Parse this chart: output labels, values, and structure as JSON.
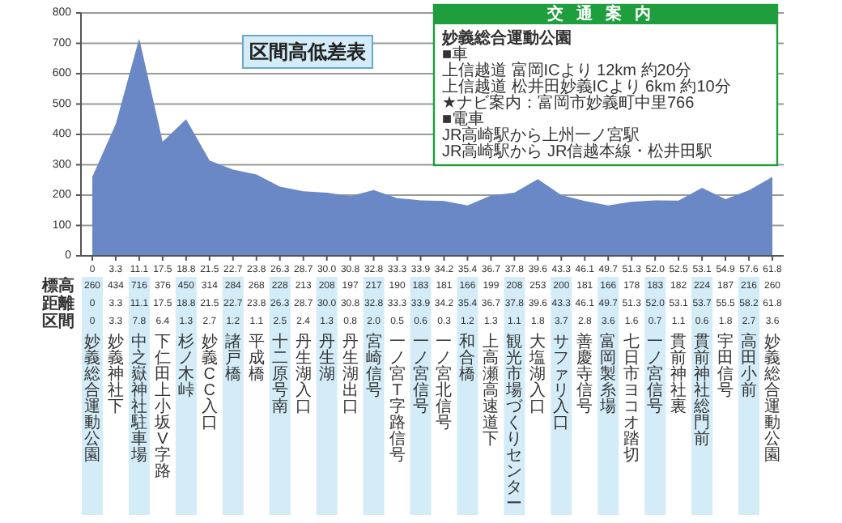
{
  "chart_data": [
    {
      "type": "area",
      "title": "区間高低差表",
      "color": "#6b88c6",
      "ylim": [
        0,
        800
      ],
      "yticks": [
        0,
        100,
        200,
        300,
        400,
        500,
        600,
        700,
        800
      ],
      "grid": "y",
      "data_labels": true,
      "categories": [
        "0",
        "3.3",
        "11.1",
        "17.5",
        "18.8",
        "21.5",
        "22.7",
        "23.8",
        "26.3",
        "28.7",
        "30.0",
        "30.8",
        "32.8",
        "33.3",
        "33.9",
        "34.2",
        "35.4",
        "36.7",
        "37.8",
        "39.6",
        "43.3",
        "46.1",
        "49.7",
        "51.3",
        "52.0",
        "52.5",
        "53.1",
        "54.9",
        "57.6",
        "61.8"
      ],
      "values": [
        260,
        434,
        716,
        376,
        450,
        314,
        284,
        268,
        228,
        213,
        208,
        197,
        217,
        190,
        183,
        181,
        166,
        199,
        208,
        253,
        200,
        181,
        166,
        178,
        183,
        182,
        224,
        187,
        216,
        260
      ],
      "annotations": [
        "標高",
        "距離",
        "区間",
        "0",
        "3.3",
        "11.1",
        "17.5",
        "18.8",
        "21.5",
        "22.7",
        "23.8",
        "26.3",
        "28.7",
        "30.0",
        "30.8",
        "32.8",
        "33.3",
        "33.9",
        "34.2",
        "35.4",
        "36.7",
        "37.8",
        "39.6",
        "43.3",
        "46.1",
        "49.7",
        "51.3",
        "52.0",
        "53.1",
        "53.7",
        "55.5",
        "58.2",
        "61.8",
        "0",
        "3.3",
        "7.8",
        "6.4",
        "1.3",
        "2.7",
        "1.2",
        "1.1",
        "2.5",
        "2.4",
        "1.3",
        "0.8",
        "2.0",
        "0.5",
        "0.6",
        "0.3",
        "1.2",
        "1.3",
        "1.1",
        "1.8",
        "3.7",
        "2.8",
        "3.6",
        "1.6",
        "0.7",
        "1.1",
        "0.6",
        "1.8",
        "2.7",
        "3.6",
        "妙義総合運動公園",
        "妙義神社下",
        "中之嶽神社駐車場",
        "下仁田上小坂V字路",
        "杉ノ木峠",
        "妙義CC入口",
        "諸戸橋",
        "平成橋",
        "十二原号南",
        "丹生湖入口",
        "丹生湖",
        "丹生湖出口",
        "宮崎信号",
        "一ノ宮T字路信号",
        "一ノ宮信号",
        "一ノ宮北信号",
        "和合橋",
        "上高瀬高速道下",
        "観光市場づくりセンター",
        "大塩湖入口",
        "サファリ入口",
        "善慶寺信号",
        "富岡製糸場",
        "七日市ヨコオ踏切",
        "一ノ宮信号",
        "貫前神社裏",
        "貫前神社総門前",
        "宇田信号",
        "高田小前",
        "妙義総合運動公園"
      ]
    },
    {
      "type": "other",
      "title": "交通案内",
      "color": "#1e9e3c",
      "annotations": [
        "妙義総合運動公園",
        "■車",
        "上信越道 富岡ICより 12km 約20分",
        "上信越道 松井田妙義ICより 6km 約10分",
        "★ナビ案内：富岡市妙義町中里766",
        "■電車",
        "JR高崎駅から上州一ノ宮駅",
        "JR高崎駅から JR信越本線・松井田駅"
      ]
    }
  ]
}
